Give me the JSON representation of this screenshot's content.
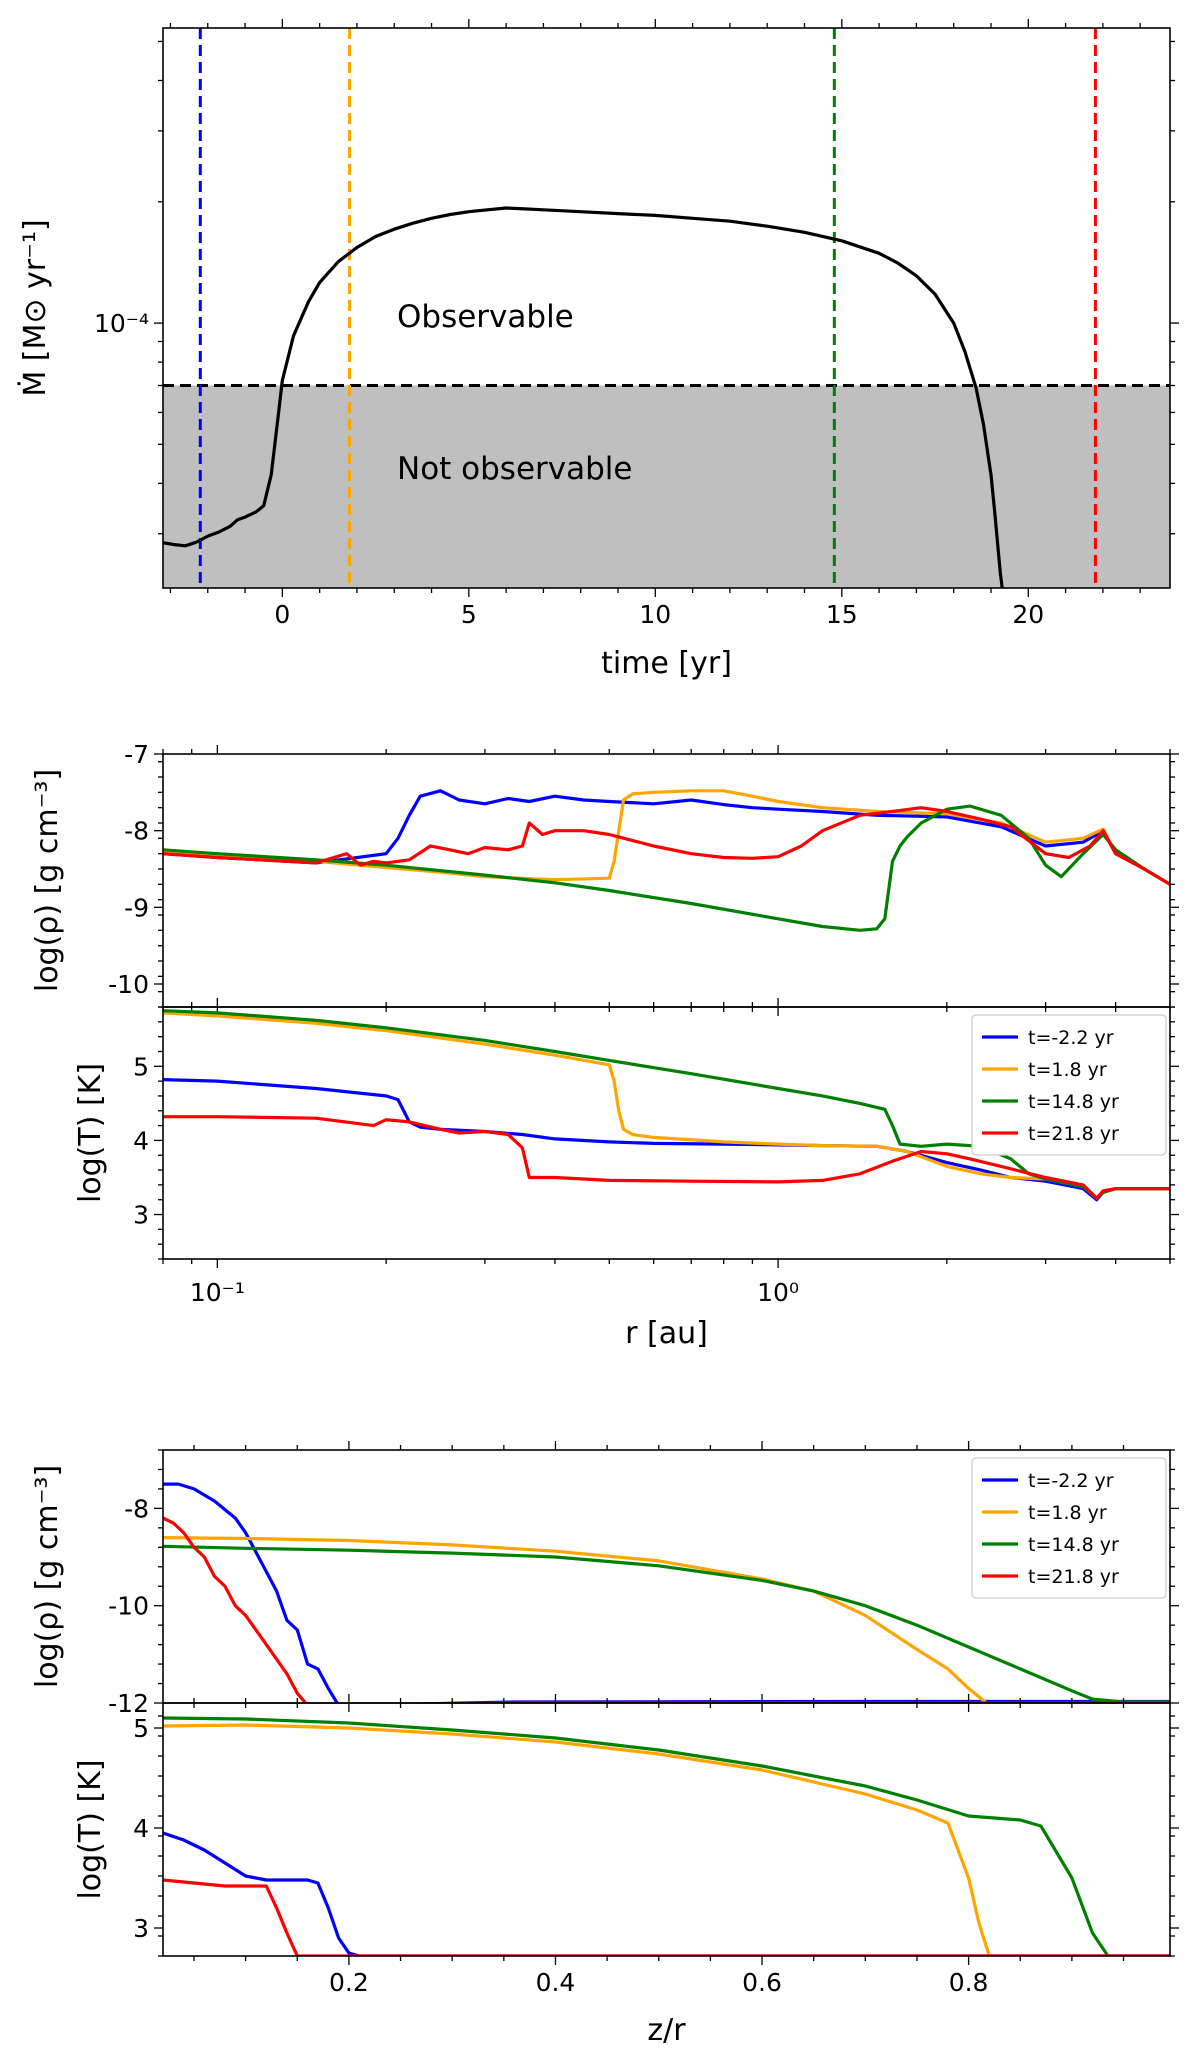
{
  "figure": {
    "title": ""
  },
  "chart_data": [
    {
      "id": "mdot",
      "type": "line",
      "xlabel": "time [yr]",
      "ylabel": "Ṁ [M⊙ yr⁻¹]",
      "xlim": [
        -3.2,
        23.8
      ],
      "yscale": "log",
      "ylim": [
        2.2e-05,
        0.00054
      ],
      "xticks": [
        0,
        5,
        10,
        15,
        20
      ],
      "ytick_major": [
        {
          "value": 0.0001,
          "label": "10⁻⁴"
        }
      ],
      "threshold": 7e-05,
      "regions": {
        "above": "Observable",
        "below": "Not observable"
      },
      "vlines": [
        {
          "x": -2.2,
          "color": "#0000ff"
        },
        {
          "x": 1.8,
          "color": "#ffa500"
        },
        {
          "x": 14.8,
          "color": "#008000"
        },
        {
          "x": 21.8,
          "color": "#ff0000"
        }
      ],
      "series": [
        {
          "name": "Mdot",
          "color": "#000000",
          "x": [
            -3.2,
            -2.9,
            -2.6,
            -2.3,
            -2.0,
            -1.7,
            -1.4,
            -1.2,
            -1.0,
            -0.7,
            -0.5,
            -0.3,
            -0.1,
            0.0,
            0.3,
            0.7,
            1.0,
            1.5,
            2.0,
            2.5,
            3.0,
            3.5,
            4.0,
            4.5,
            5.0,
            5.5,
            6.0,
            6.5,
            7.0,
            8.0,
            9.0,
            10.0,
            11.0,
            12.0,
            13.0,
            14.0,
            15.0,
            16.0,
            16.5,
            17.0,
            17.5,
            18.0,
            18.3,
            18.6,
            18.8,
            19.0,
            19.1,
            19.2,
            19.25,
            19.3
          ],
          "y": [
            2.85e-05,
            2.82e-05,
            2.8e-05,
            2.86e-05,
            2.96e-05,
            3.03e-05,
            3.13e-05,
            3.25e-05,
            3.3e-05,
            3.4e-05,
            3.52e-05,
            4.2e-05,
            6e-05,
            7.2e-05,
            9.3e-05,
            0.000113,
            0.000126,
            0.000142,
            0.000154,
            0.000164,
            0.000171,
            0.000177,
            0.000182,
            0.000186,
            0.000189,
            0.000191,
            0.000193,
            0.000192,
            0.000191,
            0.000189,
            0.000187,
            0.000185,
            0.000182,
            0.000179,
            0.000174,
            0.000168,
            0.00016,
            0.000149,
            0.000141,
            0.000131,
            0.000118,
            0.0001,
            8.5e-05,
            6.9e-05,
            5.6e-05,
            4.2e-05,
            3.4e-05,
            2.7e-05,
            2.4e-05,
            2.2e-05
          ]
        }
      ]
    },
    {
      "id": "rho_r",
      "type": "line",
      "xlabel": "",
      "ylabel": "log(ρ) [g cm⁻³]",
      "xscale": "log",
      "xlim": [
        0.08,
        5.0
      ],
      "ylim": [
        -10.3,
        -7.0
      ],
      "yticks": [
        -10,
        -9,
        -8,
        -7
      ],
      "series": [
        {
          "name": "t=-2.2 yr",
          "color": "#0000ff",
          "x": [
            0.08,
            0.1,
            0.15,
            0.2,
            0.21,
            0.22,
            0.23,
            0.25,
            0.27,
            0.3,
            0.33,
            0.36,
            0.4,
            0.45,
            0.5,
            0.6,
            0.7,
            0.8,
            0.9,
            1.0,
            1.2,
            1.5,
            2.0,
            2.5,
            3.0,
            3.5,
            3.8,
            4.0,
            4.5,
            5.0
          ],
          "y": [
            -8.3,
            -8.35,
            -8.42,
            -8.3,
            -8.1,
            -7.8,
            -7.55,
            -7.48,
            -7.6,
            -7.65,
            -7.58,
            -7.62,
            -7.55,
            -7.6,
            -7.62,
            -7.65,
            -7.6,
            -7.66,
            -7.7,
            -7.72,
            -7.75,
            -7.8,
            -7.82,
            -7.95,
            -8.2,
            -8.15,
            -8.0,
            -8.3,
            -8.5,
            -8.7
          ]
        },
        {
          "name": "t=1.8 yr",
          "color": "#ffa500",
          "x": [
            0.08,
            0.1,
            0.15,
            0.2,
            0.25,
            0.3,
            0.4,
            0.5,
            0.51,
            0.52,
            0.53,
            0.55,
            0.6,
            0.7,
            0.8,
            0.9,
            1.0,
            1.2,
            1.5,
            2.0,
            2.5,
            3.0,
            3.5,
            3.8,
            4.0,
            4.5,
            5.0
          ],
          "y": [
            -8.28,
            -8.33,
            -8.4,
            -8.48,
            -8.54,
            -8.6,
            -8.64,
            -8.62,
            -8.4,
            -8.0,
            -7.6,
            -7.52,
            -7.5,
            -7.48,
            -7.48,
            -7.55,
            -7.62,
            -7.7,
            -7.75,
            -7.78,
            -7.9,
            -8.15,
            -8.1,
            -7.98,
            -8.3,
            -8.5,
            -8.7
          ]
        },
        {
          "name": "t=14.8 yr",
          "color": "#008000",
          "x": [
            0.08,
            0.1,
            0.15,
            0.2,
            0.3,
            0.4,
            0.5,
            0.7,
            1.0,
            1.2,
            1.4,
            1.5,
            1.55,
            1.6,
            1.65,
            1.7,
            1.8,
            2.0,
            2.2,
            2.5,
            2.8,
            3.0,
            3.2,
            3.5,
            3.8,
            4.0,
            4.5,
            5.0
          ],
          "y": [
            -8.25,
            -8.3,
            -8.38,
            -8.45,
            -8.58,
            -8.68,
            -8.78,
            -8.95,
            -9.15,
            -9.25,
            -9.3,
            -9.28,
            -9.15,
            -8.4,
            -8.2,
            -8.08,
            -7.9,
            -7.72,
            -7.68,
            -7.8,
            -8.1,
            -8.45,
            -8.6,
            -8.3,
            -8.05,
            -8.25,
            -8.5,
            -8.7
          ]
        },
        {
          "name": "t=21.8 yr",
          "color": "#ff0000",
          "x": [
            0.08,
            0.1,
            0.15,
            0.17,
            0.18,
            0.19,
            0.2,
            0.22,
            0.24,
            0.26,
            0.28,
            0.3,
            0.33,
            0.35,
            0.36,
            0.38,
            0.4,
            0.45,
            0.5,
            0.6,
            0.7,
            0.8,
            0.9,
            1.0,
            1.1,
            1.2,
            1.4,
            1.6,
            1.8,
            2.0,
            2.3,
            2.6,
            3.0,
            3.3,
            3.6,
            3.8,
            4.0,
            4.5,
            5.0
          ],
          "y": [
            -8.3,
            -8.35,
            -8.42,
            -8.3,
            -8.45,
            -8.4,
            -8.42,
            -8.38,
            -8.2,
            -8.25,
            -8.3,
            -8.22,
            -8.25,
            -8.2,
            -7.9,
            -8.05,
            -8.0,
            -8.0,
            -8.05,
            -8.2,
            -8.3,
            -8.35,
            -8.36,
            -8.34,
            -8.2,
            -8.0,
            -7.8,
            -7.75,
            -7.7,
            -7.75,
            -7.85,
            -7.95,
            -8.3,
            -8.35,
            -8.2,
            -8.0,
            -8.3,
            -8.5,
            -8.7
          ]
        }
      ]
    },
    {
      "id": "T_r",
      "type": "line",
      "xlabel": "r [au]",
      "ylabel": "log(T) [K]",
      "xscale": "log",
      "xlim": [
        0.08,
        5.0
      ],
      "ylim": [
        2.4,
        5.8
      ],
      "yticks": [
        3,
        4,
        5
      ],
      "xticks_major": [
        {
          "value": 0.1,
          "label": "10⁻¹"
        },
        {
          "value": 1.0,
          "label": "10⁰"
        }
      ],
      "legend": "top-right",
      "series": [
        {
          "name": "t=-2.2 yr",
          "color": "#0000ff",
          "x": [
            0.08,
            0.1,
            0.15,
            0.2,
            0.21,
            0.22,
            0.23,
            0.25,
            0.3,
            0.35,
            0.4,
            0.5,
            0.6,
            0.8,
            1.0,
            1.2,
            1.5,
            1.7,
            2.0,
            2.3,
            2.6,
            3.0,
            3.5,
            3.7,
            3.8,
            4.0,
            5.0
          ],
          "y": [
            4.82,
            4.8,
            4.7,
            4.6,
            4.55,
            4.25,
            4.18,
            4.15,
            4.12,
            4.08,
            4.02,
            3.98,
            3.96,
            3.95,
            3.94,
            3.93,
            3.92,
            3.85,
            3.7,
            3.6,
            3.5,
            3.45,
            3.35,
            3.2,
            3.3,
            3.35,
            3.35
          ]
        },
        {
          "name": "t=1.8 yr",
          "color": "#ffa500",
          "x": [
            0.08,
            0.1,
            0.15,
            0.2,
            0.3,
            0.4,
            0.5,
            0.51,
            0.52,
            0.53,
            0.55,
            0.6,
            0.8,
            1.0,
            1.2,
            1.5,
            1.7,
            2.0,
            2.3,
            2.6,
            3.0,
            3.5,
            3.7,
            3.8,
            4.0,
            5.0
          ],
          "y": [
            5.72,
            5.68,
            5.58,
            5.48,
            5.3,
            5.15,
            5.02,
            4.8,
            4.4,
            4.15,
            4.08,
            4.04,
            3.98,
            3.95,
            3.93,
            3.92,
            3.85,
            3.65,
            3.55,
            3.5,
            3.48,
            3.38,
            3.22,
            3.3,
            3.35,
            3.35
          ]
        },
        {
          "name": "t=14.8 yr",
          "color": "#008000",
          "x": [
            0.08,
            0.1,
            0.15,
            0.2,
            0.3,
            0.4,
            0.5,
            0.7,
            1.0,
            1.2,
            1.4,
            1.55,
            1.6,
            1.65,
            1.8,
            2.0,
            2.3,
            2.6,
            2.8,
            3.0,
            3.5,
            3.7,
            3.8,
            4.0,
            5.0
          ],
          "y": [
            5.75,
            5.72,
            5.62,
            5.52,
            5.35,
            5.2,
            5.08,
            4.9,
            4.7,
            4.6,
            4.5,
            4.42,
            4.2,
            3.95,
            3.92,
            3.95,
            3.92,
            3.75,
            3.55,
            3.48,
            3.38,
            3.22,
            3.3,
            3.35,
            3.35
          ]
        },
        {
          "name": "t=21.8 yr",
          "color": "#ff0000",
          "x": [
            0.08,
            0.1,
            0.15,
            0.19,
            0.2,
            0.22,
            0.25,
            0.27,
            0.3,
            0.33,
            0.35,
            0.36,
            0.4,
            0.5,
            0.7,
            1.0,
            1.2,
            1.4,
            1.6,
            1.8,
            2.0,
            2.2,
            2.5,
            3.0,
            3.5,
            3.7,
            3.8,
            4.0,
            5.0
          ],
          "y": [
            4.32,
            4.32,
            4.3,
            4.2,
            4.28,
            4.25,
            4.15,
            4.1,
            4.12,
            4.08,
            3.9,
            3.5,
            3.5,
            3.46,
            3.45,
            3.44,
            3.46,
            3.55,
            3.72,
            3.85,
            3.82,
            3.75,
            3.65,
            3.5,
            3.4,
            3.22,
            3.32,
            3.35,
            3.35
          ]
        }
      ]
    },
    {
      "id": "rho_z",
      "type": "line",
      "xlabel": "",
      "ylabel": "log(ρ) [g cm⁻³]",
      "xlim": [
        0.02,
        0.995
      ],
      "ylim": [
        -12.0,
        -6.8
      ],
      "yticks": [
        -12,
        -10,
        -8
      ],
      "legend": "top-right",
      "series": [
        {
          "name": "t=-2.2 yr",
          "color": "#0000ff",
          "x": [
            0.02,
            0.035,
            0.05,
            0.07,
            0.09,
            0.1,
            0.11,
            0.12,
            0.13,
            0.14,
            0.15,
            0.16,
            0.17,
            0.18,
            0.19,
            0.2,
            0.36,
            0.7,
            0.995
          ],
          "y": [
            -7.5,
            -7.5,
            -7.6,
            -7.85,
            -8.2,
            -8.5,
            -8.9,
            -9.3,
            -9.7,
            -10.3,
            -10.5,
            -11.2,
            -11.3,
            -11.7,
            -12.05,
            -12.05,
            -11.98,
            -11.97,
            -11.97
          ]
        },
        {
          "name": "t=1.8 yr",
          "color": "#ffa500",
          "x": [
            0.02,
            0.1,
            0.2,
            0.3,
            0.4,
            0.5,
            0.6,
            0.65,
            0.7,
            0.75,
            0.78,
            0.8,
            0.82,
            0.84,
            0.995
          ],
          "y": [
            -8.6,
            -8.62,
            -8.66,
            -8.75,
            -8.88,
            -9.08,
            -9.45,
            -9.7,
            -10.2,
            -10.9,
            -11.3,
            -11.7,
            -12.05,
            -12.05,
            -12.05
          ]
        },
        {
          "name": "t=14.8 yr",
          "color": "#008000",
          "x": [
            0.02,
            0.1,
            0.2,
            0.3,
            0.4,
            0.5,
            0.6,
            0.65,
            0.7,
            0.75,
            0.8,
            0.85,
            0.9,
            0.92,
            0.95,
            0.995
          ],
          "y": [
            -8.78,
            -8.82,
            -8.86,
            -8.92,
            -9.0,
            -9.18,
            -9.48,
            -9.7,
            -10.0,
            -10.4,
            -10.85,
            -11.3,
            -11.75,
            -11.92,
            -11.98,
            -11.98
          ]
        },
        {
          "name": "t=21.8 yr",
          "color": "#ff0000",
          "x": [
            0.02,
            0.03,
            0.04,
            0.05,
            0.06,
            0.07,
            0.08,
            0.09,
            0.1,
            0.11,
            0.12,
            0.13,
            0.14,
            0.15,
            0.16,
            0.36,
            0.995
          ],
          "y": [
            -8.2,
            -8.3,
            -8.5,
            -8.8,
            -9.0,
            -9.4,
            -9.6,
            -10.0,
            -10.2,
            -10.5,
            -10.8,
            -11.1,
            -11.4,
            -11.8,
            -12.05,
            -12.0,
            -12.0
          ]
        }
      ]
    },
    {
      "id": "T_z",
      "type": "line",
      "xlabel": "z/r",
      "ylabel": "log(T) [K]",
      "xlim": [
        0.02,
        0.995
      ],
      "ylim": [
        2.72,
        5.25
      ],
      "yticks": [
        3,
        4,
        5
      ],
      "xticks": [
        0.2,
        0.4,
        0.6,
        0.8
      ],
      "series": [
        {
          "name": "t=-2.2 yr",
          "color": "#0000ff",
          "x": [
            0.02,
            0.04,
            0.06,
            0.08,
            0.1,
            0.12,
            0.14,
            0.16,
            0.17,
            0.18,
            0.19,
            0.2,
            0.21,
            0.995
          ],
          "y": [
            3.95,
            3.88,
            3.78,
            3.65,
            3.52,
            3.48,
            3.48,
            3.48,
            3.45,
            3.2,
            2.9,
            2.75,
            2.72,
            2.72
          ]
        },
        {
          "name": "t=1.8 yr",
          "color": "#ffa500",
          "x": [
            0.02,
            0.1,
            0.2,
            0.3,
            0.4,
            0.5,
            0.6,
            0.7,
            0.75,
            0.78,
            0.8,
            0.81,
            0.82,
            0.83,
            0.995
          ],
          "y": [
            5.02,
            5.03,
            5.0,
            4.94,
            4.86,
            4.74,
            4.58,
            4.34,
            4.18,
            4.05,
            3.5,
            3.05,
            2.72,
            2.72,
            2.72
          ]
        },
        {
          "name": "t=14.8 yr",
          "color": "#008000",
          "x": [
            0.02,
            0.1,
            0.2,
            0.3,
            0.4,
            0.5,
            0.6,
            0.7,
            0.75,
            0.8,
            0.85,
            0.87,
            0.9,
            0.92,
            0.935,
            0.995
          ],
          "y": [
            5.1,
            5.09,
            5.05,
            4.98,
            4.9,
            4.78,
            4.62,
            4.42,
            4.28,
            4.12,
            4.08,
            4.02,
            3.5,
            2.95,
            2.72,
            2.72
          ]
        },
        {
          "name": "t=21.8 yr",
          "color": "#ff0000",
          "x": [
            0.02,
            0.05,
            0.08,
            0.1,
            0.12,
            0.13,
            0.14,
            0.15,
            0.995
          ],
          "y": [
            3.48,
            3.45,
            3.42,
            3.42,
            3.42,
            3.2,
            2.95,
            2.72,
            2.72
          ]
        }
      ]
    }
  ]
}
